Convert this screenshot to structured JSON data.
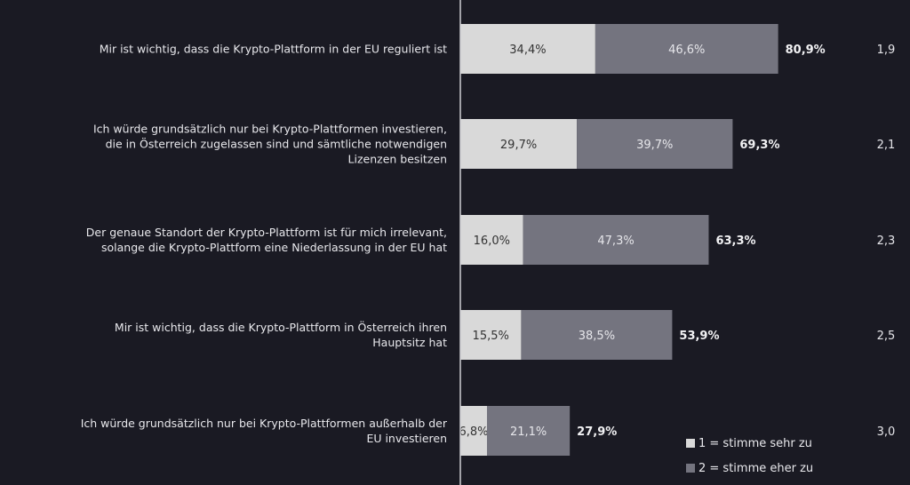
{
  "chart_data": {
    "type": "bar",
    "orientation": "horizontal",
    "stacked": true,
    "categories": [
      "Mir ist wichtig, dass die Krypto-Plattform in der EU reguliert ist",
      "Ich würde grundsätzlich nur bei Krypto-Plattformen investieren, die in Österreich zugelassen sind und sämtliche notwendigen Lizenzen besitzen",
      "Der genaue Standort der Krypto-Plattform ist für mich irrelevant, solange die Krypto-Plattform eine Niederlassung in der EU hat",
      "Mir ist wichtig, dass die Krypto-Plattform in Österreich ihren Hauptsitz hat",
      "Ich würde grundsätzlich nur bei Krypto-Plattformen außerhalb der EU investieren"
    ],
    "category_lines": [
      [
        "Mir ist wichtig, dass die Krypto-Plattform in der EU reguliert ist"
      ],
      [
        "Ich würde grundsätzlich nur bei Krypto-Plattformen investieren,",
        "die in Österreich zugelassen sind und sämtliche notwendigen",
        "Lizenzen besitzen"
      ],
      [
        "Der genaue Standort der Krypto-Plattform ist für mich irrelevant,",
        "solange die Krypto-Plattform eine Niederlassung in der EU hat"
      ],
      [
        "Mir ist wichtig, dass die Krypto-Plattform in Österreich ihren",
        "Hauptsitz hat"
      ],
      [
        "Ich würde grundsätzlich nur bei Krypto-Plattformen außerhalb der",
        "EU investieren"
      ]
    ],
    "series": [
      {
        "name": "1 = stimme sehr zu",
        "values": [
          34.4,
          29.7,
          16.0,
          15.5,
          6.8
        ],
        "labels": [
          "34,4%",
          "29,7%",
          "16,0%",
          "15,5%",
          "6,8%"
        ],
        "color": "#d9d9d9"
      },
      {
        "name": "2 = stimme eher zu",
        "values": [
          46.6,
          39.7,
          47.3,
          38.5,
          21.1
        ],
        "labels": [
          "46,6%",
          "39,7%",
          "47,3%",
          "38,5%",
          "21,1%"
        ],
        "color": "#74747f"
      }
    ],
    "totals": [
      "80,9%",
      "69,3%",
      "63,3%",
      "53,9%",
      "27,9%"
    ],
    "means": [
      "1,9",
      "2,1",
      "2,3",
      "2,5",
      "3,0"
    ],
    "xlim": [
      0,
      100
    ],
    "grid": false,
    "legend_position": "bottom-right"
  }
}
